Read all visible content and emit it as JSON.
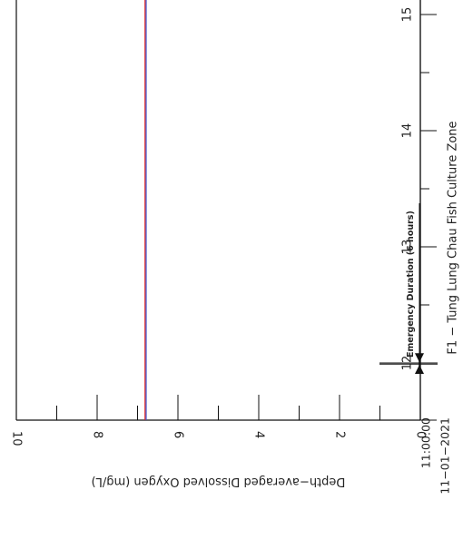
{
  "chart_data": {
    "type": "line",
    "title": "F1 − Tung Lung Chau Fish Culture Zone",
    "ylabel": "Depth−averaged Dissolved Oxygen (mg/L)",
    "ylim": [
      0,
      10
    ],
    "yticks": [
      "0",
      "2",
      "4",
      "6",
      "8",
      "10"
    ],
    "xlim_hours": [
      0,
      15.35
    ],
    "xticks": [
      {
        "hour": 0,
        "label": "11:00:00",
        "sublabel": "11−01−2021"
      },
      {
        "hour": 12,
        "label": "12"
      },
      {
        "hour": 13,
        "label": "13"
      },
      {
        "hour": 14,
        "label": "14"
      },
      {
        "hour": 15,
        "label": "15"
      }
    ],
    "series": [
      {
        "x_hours": [
          0,
          3,
          6,
          9,
          12,
          15.35
        ],
        "values": [
          6.8,
          6.8,
          6.8,
          6.8,
          6.8,
          6.8
        ],
        "color": "#e02020"
      },
      {
        "x_hours": [
          0,
          3,
          6,
          9,
          12,
          15.35
        ],
        "values": [
          6.8,
          6.8,
          6.8,
          6.8,
          6.8,
          6.8
        ],
        "color": "#3b5bd6"
      }
    ],
    "annotation": {
      "label": "Emergency Duration (6 hours)",
      "start_hour": 11.77,
      "end_hour": 12.0
    }
  }
}
